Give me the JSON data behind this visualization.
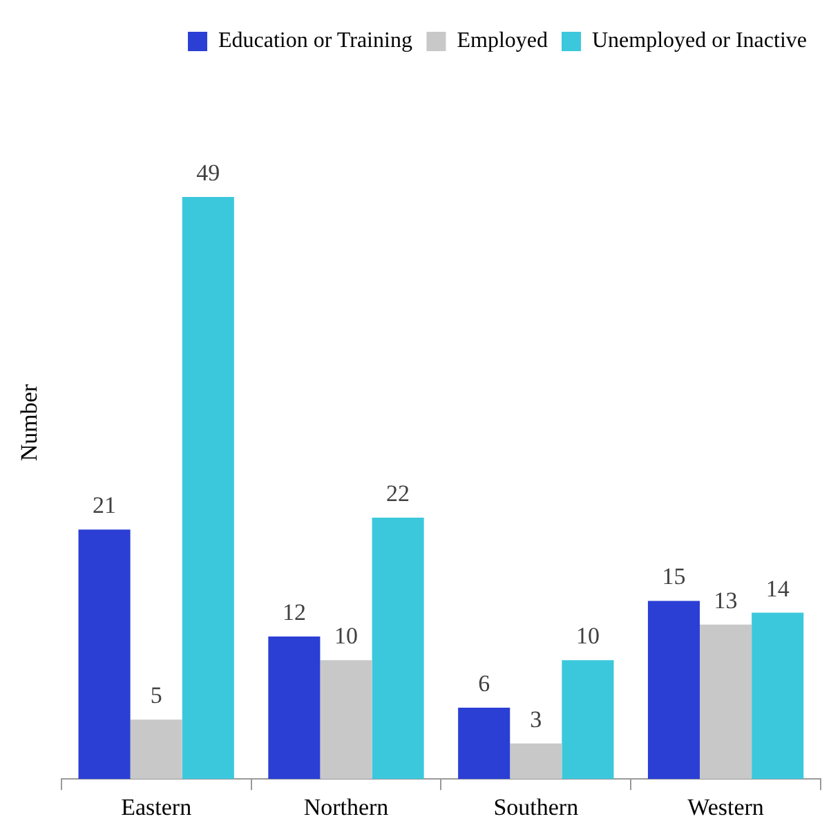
{
  "chart_data": {
    "type": "bar",
    "ylabel": "Number",
    "categories": [
      "Eastern",
      "Northern",
      "Southern",
      "Western"
    ],
    "series": [
      {
        "name": "Education or Training",
        "color": "#2b3fd4",
        "values": [
          21,
          12,
          6,
          15
        ]
      },
      {
        "name": "Employed",
        "color": "#c8c8c8",
        "values": [
          5,
          10,
          3,
          13
        ]
      },
      {
        "name": "Unemployed or Inactive",
        "color": "#3cc8dc",
        "values": [
          49,
          22,
          10,
          14
        ]
      }
    ],
    "data_labels": true,
    "legend": "top right",
    "grid": false
  }
}
